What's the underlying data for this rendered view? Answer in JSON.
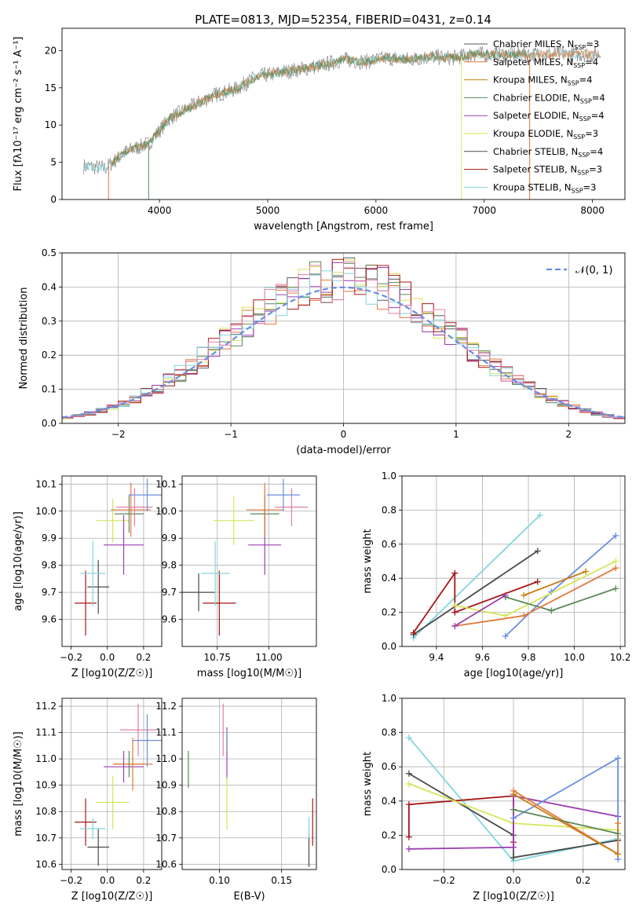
{
  "figure_title": "PLATE=0813, MJD=52354, FIBERID=0431, z=0.14",
  "colors": {
    "chabrier_miles": "#5a5a5a",
    "salpeter_miles": "#e2783a",
    "kroupa_miles": "#c97d13",
    "chabrier_elodie": "#5a8a5a",
    "salpeter_elodie": "#9a3fb0",
    "kroupa_elodie": "#d6e55a",
    "chabrier_stelib": "#4a4a4a",
    "salpeter_stelib": "#a51616",
    "kroupa_stelib": "#82d6dd",
    "blue": "#6a8ee0",
    "pink": "#e37fa6",
    "normal_curve": "#6a8ee0"
  },
  "chart_data": [
    {
      "id": "spectrum",
      "type": "line",
      "xlabel": "wavelength [Angstrom, rest frame]",
      "ylabel": "Flux [fλ10⁻¹⁷ erg cm⁻² s⁻¹ A⁻¹]",
      "xlim": [
        3100,
        8300
      ],
      "ylim": [
        0,
        23
      ],
      "xticks": [
        "4000",
        "5000",
        "6000",
        "7000",
        "8000"
      ],
      "yticks": [
        "0",
        "5",
        "10",
        "15",
        "20"
      ],
      "legend_placement": "top-right",
      "legend": [
        "Chabrier MILES, NSSP=3",
        "Salpeter MILES, NSSP=4",
        "Kroupa MILES, NSSP=4",
        "Chabrier ELODIE, NSSP=4",
        "Salpeter ELODIE, NSSP=4",
        "Kroupa ELODIE, NSSP=3",
        "Chabrier STELIB, NSSP=4",
        "Salpeter STELIB, NSSP=3",
        "Kroupa STELIB, NSSP=3"
      ],
      "data_trend": {
        "x": [
          3300,
          3500,
          3700,
          3900,
          4100,
          4300,
          4500,
          4700,
          4900,
          5100,
          5300,
          5500,
          5700,
          5900,
          6100,
          6300,
          6500,
          6700,
          6900,
          7100,
          7300,
          7500,
          7700,
          7900,
          8050
        ],
        "y": [
          4.5,
          4.2,
          6.5,
          7.5,
          11.0,
          12.5,
          14.0,
          14.8,
          16.5,
          17.0,
          17.5,
          18.0,
          18.8,
          18.5,
          19.0,
          18.8,
          19.2,
          19.0,
          19.5,
          19.5,
          19.5,
          19.5,
          19.5,
          19.5,
          19.5
        ]
      }
    },
    {
      "id": "residuals",
      "type": "line",
      "xlabel": "(data-model)/error",
      "ylabel": "Normed distribution",
      "xlim": [
        -2.5,
        2.5
      ],
      "ylim": [
        0,
        0.5
      ],
      "xticks": [
        "−2",
        "−1",
        "0",
        "1",
        "2"
      ],
      "yticks": [
        "0.0",
        "0.1",
        "0.2",
        "0.3",
        "0.4",
        "0.5"
      ],
      "grid": true,
      "legend_placement": "top-right",
      "legend": [
        "𝒩(0, 1)"
      ]
    },
    {
      "id": "age_vs_Z",
      "type": "scatter",
      "xlabel": "Z [log10(Z/Z☉)]",
      "ylabel": "age [log10(age/yr)]",
      "xlim": [
        -0.25,
        0.3
      ],
      "ylim": [
        9.5,
        10.13
      ],
      "xticks": [
        "−0.2",
        "0.0",
        "0.2"
      ],
      "yticks": [
        "9.6",
        "9.7",
        "9.8",
        "9.9",
        "10.0",
        "10.1"
      ],
      "grid": true,
      "points": [
        {
          "x": -0.05,
          "y": 9.72,
          "xerr": 0.06,
          "yerr": 0.1,
          "c": "chabrier_stelib"
        },
        {
          "x": -0.12,
          "y": 9.66,
          "xerr": 0.06,
          "yerr": 0.12,
          "c": "salpeter_stelib"
        },
        {
          "x": -0.08,
          "y": 9.77,
          "xerr": 0.07,
          "yerr": 0.12,
          "c": "kroupa_stelib"
        },
        {
          "x": 0.03,
          "y": 9.965,
          "xerr": 0.09,
          "yerr": 0.08,
          "c": "kroupa_elodie"
        },
        {
          "x": 0.09,
          "y": 9.875,
          "xerr": 0.11,
          "yerr": 0.11,
          "c": "salpeter_elodie"
        },
        {
          "x": 0.12,
          "y": 9.99,
          "xerr": 0.08,
          "yerr": 0.07,
          "c": "chabrier_elodie"
        },
        {
          "x": 0.13,
          "y": 10.005,
          "xerr": 0.11,
          "yerr": 0.1,
          "c": "salpeter_miles"
        },
        {
          "x": 0.15,
          "y": 10.015,
          "xerr": 0.1,
          "yerr": 0.07,
          "c": "pink"
        },
        {
          "x": 0.22,
          "y": 10.06,
          "xerr": 0.1,
          "yerr": 0.06,
          "c": "blue"
        }
      ]
    },
    {
      "id": "age_vs_mass",
      "type": "scatter",
      "xlabel": "mass [log10(M/M☉)]",
      "ylabel": "",
      "xlim": [
        10.58,
        11.23
      ],
      "ylim": [
        9.5,
        10.13
      ],
      "xticks": [
        "10.75",
        "11.00"
      ],
      "yticks": [
        "9.6",
        "9.7",
        "9.8",
        "9.9",
        "10.0",
        "10.1"
      ],
      "grid": true,
      "points": [
        {
          "x": 10.66,
          "y": 9.7,
          "xerr": 0.08,
          "yerr": 0.07,
          "c": "chabrier_stelib"
        },
        {
          "x": 10.76,
          "y": 9.66,
          "xerr": 0.08,
          "yerr": 0.12,
          "c": "salpeter_stelib"
        },
        {
          "x": 10.74,
          "y": 9.77,
          "xerr": 0.07,
          "yerr": 0.12,
          "c": "kroupa_stelib"
        },
        {
          "x": 10.83,
          "y": 9.965,
          "xerr": 0.1,
          "yerr": 0.09,
          "c": "kroupa_elodie"
        },
        {
          "x": 10.98,
          "y": 9.875,
          "xerr": 0.08,
          "yerr": 0.11,
          "c": "salpeter_elodie"
        },
        {
          "x": 10.98,
          "y": 9.99,
          "xerr": 0.07,
          "yerr": 0.07,
          "c": "chabrier_elodie"
        },
        {
          "x": 10.98,
          "y": 10.005,
          "xerr": 0.09,
          "yerr": 0.1,
          "c": "salpeter_miles"
        },
        {
          "x": 11.11,
          "y": 10.015,
          "xerr": 0.08,
          "yerr": 0.07,
          "c": "pink"
        },
        {
          "x": 11.07,
          "y": 10.06,
          "xerr": 0.08,
          "yerr": 0.06,
          "c": "blue"
        }
      ]
    },
    {
      "id": "weight_vs_age",
      "type": "line",
      "xlabel": "age [log10(age/yr)]",
      "ylabel": "mass weight",
      "xlim": [
        9.25,
        10.22
      ],
      "ylim": [
        0,
        1
      ],
      "xticks": [
        "9.4",
        "9.6",
        "9.8",
        "10.0",
        "10.2"
      ],
      "yticks": [
        "0.0",
        "0.2",
        "0.4",
        "0.6",
        "0.8",
        "1.0"
      ],
      "grid": true,
      "series": [
        {
          "c": "kroupa_stelib",
          "x": [
            9.3,
            9.85
          ],
          "y": [
            0.05,
            0.77
          ]
        },
        {
          "c": "chabrier_stelib",
          "x": [
            9.3,
            9.84
          ],
          "y": [
            0.07,
            0.56
          ]
        },
        {
          "c": "salpeter_stelib",
          "x": [
            9.3,
            9.48,
            9.48,
            9.84
          ],
          "y": [
            0.08,
            0.43,
            0.2,
            0.38
          ]
        },
        {
          "c": "blue",
          "x": [
            9.7,
            9.9,
            10.18
          ],
          "y": [
            0.06,
            0.32,
            0.65
          ]
        },
        {
          "c": "kroupa_elodie",
          "x": [
            9.48,
            9.7,
            10.18
          ],
          "y": [
            0.24,
            0.18,
            0.5
          ]
        },
        {
          "c": "chabrier_elodie",
          "x": [
            9.7,
            9.9,
            10.18
          ],
          "y": [
            0.29,
            0.21,
            0.34
          ]
        },
        {
          "c": "salpeter_miles",
          "x": [
            9.48,
            9.78,
            10.18
          ],
          "y": [
            0.12,
            0.18,
            0.46
          ]
        },
        {
          "c": "kroupa_miles",
          "x": [
            9.78,
            10.05
          ],
          "y": [
            0.3,
            0.44
          ]
        },
        {
          "c": "salpeter_elodie",
          "x": [
            9.48,
            9.7
          ],
          "y": [
            0.12,
            0.3
          ]
        }
      ]
    },
    {
      "id": "mass_vs_Z",
      "type": "scatter",
      "xlabel": "Z [log10(Z/Z☉)]",
      "ylabel": "mass [log10(M/M☉)]",
      "xlim": [
        -0.25,
        0.3
      ],
      "ylim": [
        10.58,
        11.23
      ],
      "xticks": [
        "−0.2",
        "0.0",
        "0.2"
      ],
      "yticks": [
        "10.6",
        "10.7",
        "10.8",
        "10.9",
        "11.0",
        "11.1",
        "11.2"
      ],
      "grid": true,
      "points": [
        {
          "x": -0.05,
          "y": 10.665,
          "xerr": 0.06,
          "yerr": 0.07,
          "c": "chabrier_stelib"
        },
        {
          "x": -0.12,
          "y": 10.76,
          "xerr": 0.06,
          "yerr": 0.09,
          "c": "salpeter_stelib"
        },
        {
          "x": -0.08,
          "y": 10.735,
          "xerr": 0.07,
          "yerr": 0.04,
          "c": "kroupa_stelib"
        },
        {
          "x": 0.03,
          "y": 10.835,
          "xerr": 0.09,
          "yerr": 0.1,
          "c": "kroupa_elodie"
        },
        {
          "x": 0.09,
          "y": 10.97,
          "xerr": 0.11,
          "yerr": 0.06,
          "c": "salpeter_elodie"
        },
        {
          "x": 0.12,
          "y": 10.98,
          "xerr": 0.08,
          "yerr": 0.05,
          "c": "chabrier_elodie"
        },
        {
          "x": 0.14,
          "y": 10.98,
          "xerr": 0.11,
          "yerr": 0.1,
          "c": "salpeter_miles"
        },
        {
          "x": 0.17,
          "y": 11.11,
          "xerr": 0.1,
          "yerr": 0.1,
          "c": "pink"
        },
        {
          "x": 0.22,
          "y": 11.07,
          "xerr": 0.08,
          "yerr": 0.1,
          "c": "blue"
        }
      ]
    },
    {
      "id": "mass_vs_ebv",
      "type": "scatter",
      "xlabel": "E(B-V)",
      "ylabel": "",
      "xlim": [
        0.07,
        0.178
      ],
      "ylim": [
        10.58,
        11.23
      ],
      "xticks": [
        "0.10",
        "0.15"
      ],
      "yticks": [
        "10.6",
        "10.7",
        "10.8",
        "10.9",
        "11.0",
        "11.1",
        "11.2"
      ],
      "grid": true,
      "points": [
        {
          "x": 0.075,
          "y": 10.96,
          "xerr": 0,
          "yerr": 0.07,
          "c": "chabrier_elodie"
        },
        {
          "x": 0.103,
          "y": 11.11,
          "xerr": 0,
          "yerr": 0.1,
          "c": "pink"
        },
        {
          "x": 0.106,
          "y": 11.02,
          "xerr": 0,
          "yerr": 0.1,
          "c": "salpeter_elodie"
        },
        {
          "x": 0.106,
          "y": 10.83,
          "xerr": 0,
          "yerr": 0.1,
          "c": "kroupa_elodie"
        },
        {
          "x": 0.106,
          "y": 11.07,
          "xerr": 0,
          "yerr": 0.04,
          "c": "blue"
        },
        {
          "x": 0.172,
          "y": 10.66,
          "xerr": 0,
          "yerr": 0.07,
          "c": "chabrier_stelib"
        },
        {
          "x": 0.175,
          "y": 10.76,
          "xerr": 0,
          "yerr": 0.09,
          "c": "salpeter_stelib"
        },
        {
          "x": 0.172,
          "y": 10.74,
          "xerr": 0,
          "yerr": 0.04,
          "c": "kroupa_stelib"
        }
      ]
    },
    {
      "id": "weight_vs_Z",
      "type": "line",
      "xlabel": "Z [log10(Z/Z☉)]",
      "ylabel": "mass weight",
      "xlim": [
        -0.32,
        0.32
      ],
      "ylim": [
        0,
        1
      ],
      "xticks": [
        "−0.2",
        "0.0",
        "0.2"
      ],
      "yticks": [
        "0.0",
        "0.2",
        "0.4",
        "0.6",
        "0.8",
        "1.0"
      ],
      "grid": true,
      "series": [
        {
          "c": "kroupa_stelib",
          "x": [
            -0.3,
            0.0,
            0.3
          ],
          "y": [
            0.77,
            0.05,
            0.18
          ]
        },
        {
          "c": "chabrier_stelib",
          "x": [
            -0.3,
            0.0,
            0.0,
            0.3
          ],
          "y": [
            0.56,
            0.2,
            0.07,
            0.17
          ]
        },
        {
          "c": "salpeter_stelib",
          "x": [
            -0.3,
            -0.3,
            0.0,
            0.0
          ],
          "y": [
            0.19,
            0.38,
            0.43,
            0.16
          ]
        },
        {
          "c": "kroupa_elodie",
          "x": [
            -0.3,
            0.0,
            0.3
          ],
          "y": [
            0.5,
            0.27,
            0.23
          ]
        },
        {
          "c": "salpeter_elodie",
          "x": [
            -0.3,
            0.0,
            0.0,
            0.3
          ],
          "y": [
            0.12,
            0.13,
            0.43,
            0.31
          ]
        },
        {
          "c": "blue",
          "x": [
            0.0,
            0.3,
            0.3
          ],
          "y": [
            0.3,
            0.65,
            0.06
          ]
        },
        {
          "c": "salpeter_miles",
          "x": [
            0.0,
            0.3,
            0.3
          ],
          "y": [
            0.46,
            0.09,
            0.27
          ]
        },
        {
          "c": "chabrier_elodie",
          "x": [
            0.0,
            0.3
          ],
          "y": [
            0.35,
            0.21
          ]
        },
        {
          "c": "kroupa_miles",
          "x": [
            0.0,
            0.3
          ],
          "y": [
            0.44,
            0.09
          ]
        }
      ]
    }
  ]
}
